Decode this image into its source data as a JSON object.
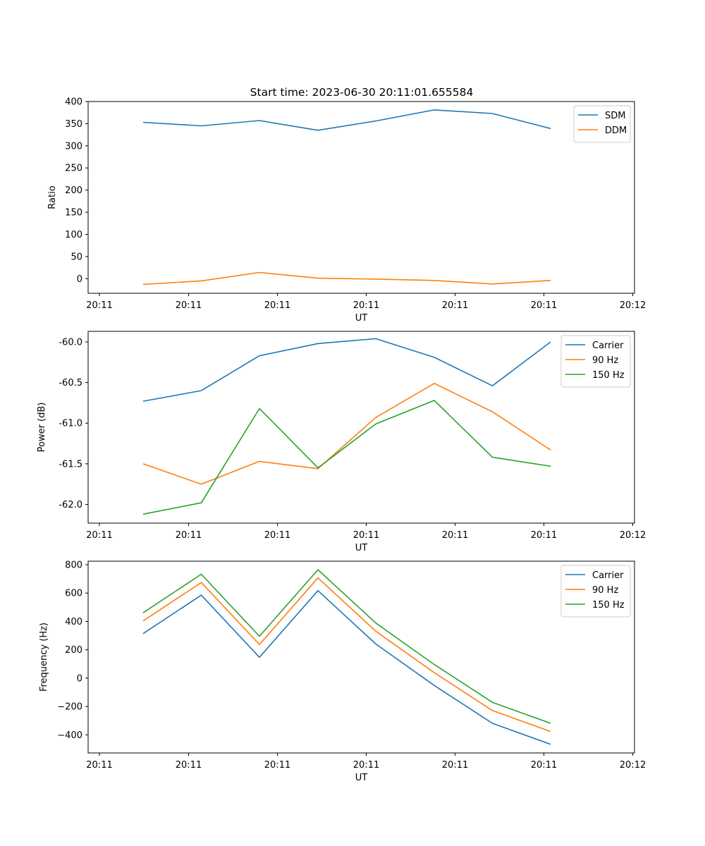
{
  "chart_data": [
    {
      "type": "line",
      "title": "Start time: 2023-06-30 20:11:01.655584",
      "xlabel": "UT",
      "ylabel": "Ratio",
      "xticks": [
        "20:11",
        "20:11",
        "20:11",
        "20:11",
        "20:11",
        "20:11",
        "20:12"
      ],
      "ylim": [
        -33,
        400
      ],
      "yticks": [
        "0",
        "50",
        "100",
        "150",
        "200",
        "250",
        "300",
        "350",
        "400"
      ],
      "yticks_values": [
        0,
        50,
        100,
        150,
        200,
        250,
        300,
        350,
        400
      ],
      "legend_position": "upper-right",
      "series": [
        {
          "name": "SDM",
          "color": "#1f77b4",
          "values": [
            353,
            345,
            357,
            335,
            356,
            381,
            373,
            339
          ]
        },
        {
          "name": "DDM",
          "color": "#ff7f0e",
          "values": [
            -13,
            -5,
            14,
            1,
            -1,
            -4,
            -12,
            -4
          ]
        }
      ]
    },
    {
      "type": "line",
      "title": "",
      "xlabel": "UT",
      "ylabel": "Power (dB)",
      "xticks": [
        "20:11",
        "20:11",
        "20:11",
        "20:11",
        "20:11",
        "20:11",
        "20:12"
      ],
      "ylim": [
        -62.23,
        -59.87
      ],
      "yticks": [
        "-62.0",
        "-61.5",
        "-61.0",
        "-60.5",
        "-60.0"
      ],
      "yticks_values": [
        -62.0,
        -61.5,
        -61.0,
        -60.5,
        -60.0
      ],
      "legend_position": "upper-right",
      "series": [
        {
          "name": "Carrier",
          "color": "#1f77b4",
          "values": [
            -60.73,
            -60.6,
            -60.17,
            -60.02,
            -59.96,
            -60.19,
            -60.54,
            -60.0
          ]
        },
        {
          "name": "90 Hz",
          "color": "#ff7f0e",
          "values": [
            -61.5,
            -61.75,
            -61.47,
            -61.56,
            -60.93,
            -60.51,
            -60.86,
            -61.33
          ]
        },
        {
          "name": "150 Hz",
          "color": "#2ca02c",
          "values": [
            -62.12,
            -61.98,
            -60.82,
            -61.55,
            -61.01,
            -60.72,
            -61.42,
            -61.53
          ]
        }
      ]
    },
    {
      "type": "line",
      "title": "",
      "xlabel": "UT",
      "ylabel": "Frequency (Hz)",
      "xticks": [
        "20:11",
        "20:11",
        "20:11",
        "20:11",
        "20:11",
        "20:11",
        "20:12"
      ],
      "ylim": [
        -528,
        825
      ],
      "yticks": [
        "−400",
        "−200",
        "0",
        "200",
        "400",
        "600",
        "800"
      ],
      "yticks_values": [
        -400,
        -200,
        0,
        200,
        400,
        600,
        800
      ],
      "legend_position": "upper-right",
      "series": [
        {
          "name": "Carrier",
          "color": "#1f77b4",
          "values": [
            314,
            585,
            147,
            617,
            241,
            -52,
            -319,
            -467
          ]
        },
        {
          "name": "90 Hz",
          "color": "#ff7f0e",
          "values": [
            403,
            675,
            237,
            707,
            331,
            38,
            -229,
            -377
          ]
        },
        {
          "name": "150 Hz",
          "color": "#2ca02c",
          "values": [
            461,
            733,
            295,
            765,
            389,
            96,
            -171,
            -319
          ]
        }
      ]
    }
  ]
}
